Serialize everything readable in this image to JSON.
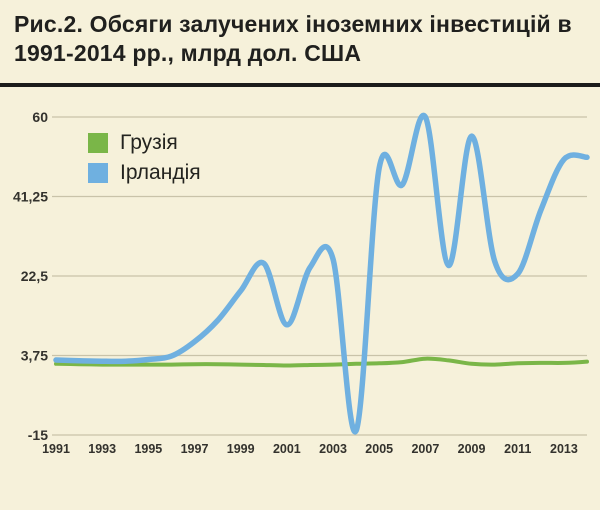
{
  "title": "Рис.2. Обсяги залучених іноземних інвестицій в 1991-2014 рр., млрд дол. США",
  "colors": {
    "background": "#f6f1da",
    "grid": "#c9c3a9",
    "text": "#23231f",
    "georgia": "#7ab648",
    "ireland": "#6fb0e0"
  },
  "legend": {
    "items": [
      {
        "label": "Грузія",
        "color": "#7ab648"
      },
      {
        "label": "Ірландія",
        "color": "#6fb0e0"
      }
    ]
  },
  "chart_data": {
    "type": "line",
    "title": "Обсяги залучених іноземних інвестицій в 1991-2014 рр., млрд дол. США",
    "xlabel": "",
    "ylabel": "",
    "xlim": [
      1991,
      2014
    ],
    "ylim": [
      -15,
      60
    ],
    "grid": true,
    "legend_position": "top-left",
    "x": [
      1991,
      1992,
      1993,
      1994,
      1995,
      1996,
      1997,
      1998,
      1999,
      2000,
      2001,
      2002,
      2003,
      2004,
      2005,
      2006,
      2007,
      2008,
      2009,
      2010,
      2011,
      2012,
      2013,
      2014
    ],
    "x_ticks": [
      {
        "value": 1991,
        "label": "1991"
      },
      {
        "value": 1993,
        "label": "1993"
      },
      {
        "value": 1995,
        "label": "1995"
      },
      {
        "value": 1997,
        "label": "1997"
      },
      {
        "value": 1999,
        "label": "1999"
      },
      {
        "value": 2001,
        "label": "2001"
      },
      {
        "value": 2003,
        "label": "2003"
      },
      {
        "value": 2005,
        "label": "2005"
      },
      {
        "value": 2007,
        "label": "2007"
      },
      {
        "value": 2009,
        "label": "2009"
      },
      {
        "value": 2011,
        "label": "2011"
      },
      {
        "value": 2013,
        "label": "2013"
      }
    ],
    "y_ticks": [
      {
        "value": 60,
        "label": "60"
      },
      {
        "value": 41.25,
        "label": "41,25"
      },
      {
        "value": 22.5,
        "label": "22,5"
      },
      {
        "value": 3.75,
        "label": "3,75"
      },
      {
        "value": -15,
        "label": "-15"
      }
    ],
    "series": [
      {
        "name": "Грузія",
        "color": "#7ab648",
        "width": 4,
        "values": [
          1.8,
          1.7,
          1.6,
          1.6,
          1.6,
          1.6,
          1.7,
          1.7,
          1.6,
          1.5,
          1.4,
          1.5,
          1.6,
          1.8,
          1.9,
          2.2,
          3.0,
          2.6,
          1.8,
          1.6,
          1.9,
          2.0,
          2.0,
          2.3
        ]
      },
      {
        "name": "Ірландія",
        "color": "#6fb0e0",
        "width": 5.5,
        "values": [
          2.7,
          2.5,
          2.4,
          2.4,
          2.8,
          3.6,
          7,
          12,
          19,
          25.5,
          11,
          24.5,
          26.5,
          -14,
          48,
          44,
          60,
          25,
          55.5,
          26,
          23,
          38,
          50,
          50.5
        ]
      }
    ]
  }
}
